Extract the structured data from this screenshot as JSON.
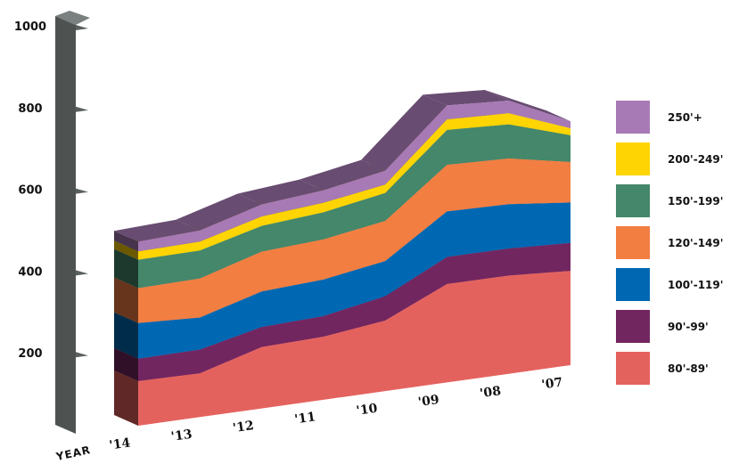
{
  "chart_data": {
    "type": "area",
    "stacked": true,
    "style": "3d",
    "xlabel": "YEAR",
    "ylabel": "",
    "ylim": [
      0,
      1000
    ],
    "yticks": [
      "200",
      "400",
      "600",
      "800",
      "1000"
    ],
    "ytick_values": [
      200,
      400,
      600,
      800,
      1000
    ],
    "x": [
      "'14",
      "'13",
      "'12",
      "'11",
      "'10",
      "'09",
      "'08",
      "'07"
    ],
    "legend_position": "right",
    "series": [
      {
        "name": "80'-89'",
        "color": "#e4625e",
        "values": [
          160,
          157,
          220,
          226,
          253,
          353,
          352,
          338
        ]
      },
      {
        "name": "90'-99'",
        "color": "#722660",
        "values": [
          80,
          85,
          72,
          74,
          87,
          97,
          97,
          100
        ]
      },
      {
        "name": "100'-119'",
        "color": "#0068b3",
        "values": [
          128,
          115,
          127,
          131,
          126,
          163,
          159,
          145
        ]
      },
      {
        "name": "120'-149'",
        "color": "#f27e42",
        "values": [
          125,
          140,
          143,
          144,
          144,
          167,
          164,
          145
        ]
      },
      {
        "name": "150'-199'",
        "color": "#44876a",
        "values": [
          102,
          100,
          92,
          97,
          100,
          125,
          122,
          96
        ]
      },
      {
        "name": "200'-249'",
        "color": "#fed402",
        "values": [
          30,
          32,
          34,
          34,
          30,
          38,
          40,
          25
        ]
      },
      {
        "name": "250'+",
        "color": "#a77ab6",
        "values": [
          35,
          40,
          43,
          45,
          50,
          50,
          45,
          25
        ]
      }
    ]
  }
}
